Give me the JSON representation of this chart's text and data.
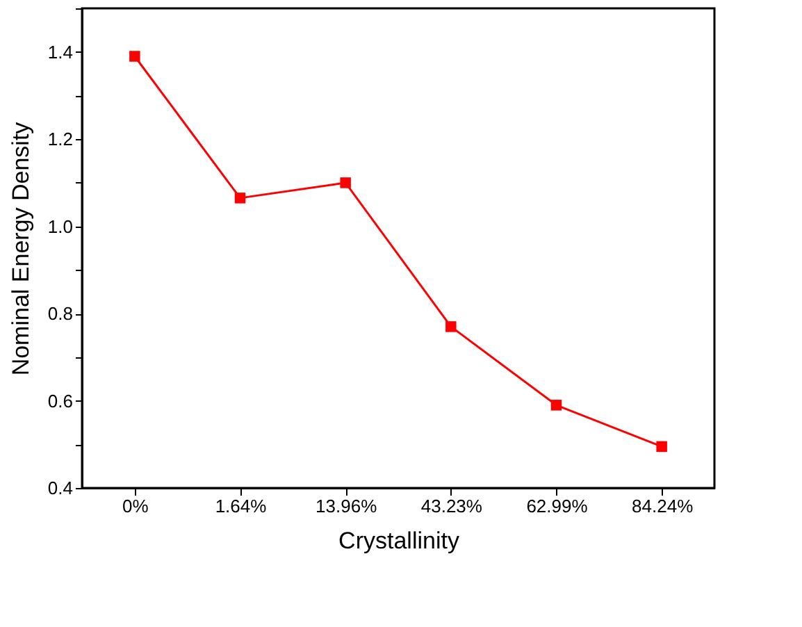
{
  "chart_data": {
    "type": "line",
    "xlabel": "Crystallinity",
    "ylabel": "Nominal Energy Density",
    "categories": [
      "0%",
      "1.64%",
      "13.96%",
      "43.23%",
      "62.99%",
      "84.24%"
    ],
    "series": [
      {
        "color": "#ff0000",
        "values": [
          1.39,
          1.065,
          1.1,
          0.77,
          0.59,
          0.495
        ]
      }
    ],
    "ylim": [
      0.4,
      1.5
    ],
    "yticks": [
      0.4,
      {
        "value": 0.5,
        "label": null
      },
      0.6,
      {
        "value": 0.7,
        "label": null
      },
      0.8,
      {
        "value": 0.9,
        "label": null
      },
      {
        "value": 1.0,
        "label": "1.0"
      },
      {
        "value": 1.1,
        "label": null
      },
      1.2,
      {
        "value": 1.3,
        "label": null
      },
      1.4,
      {
        "value": 1.5,
        "label": null
      }
    ],
    "marker": "square",
    "line_style": "solid"
  }
}
